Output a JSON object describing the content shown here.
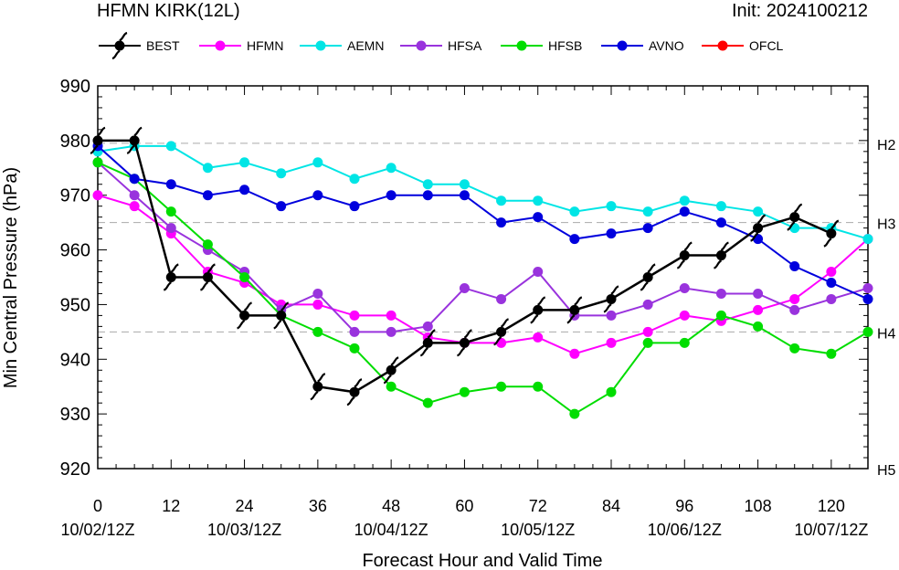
{
  "header": {
    "title": "HFMN KIRK(12L)",
    "init": "Init: 2024100212"
  },
  "chart_data": {
    "type": "line",
    "xlabel": "Forecast Hour and Valid Time",
    "ylabel": "Min Central Pressure (hPa)",
    "xlim": [
      0,
      126
    ],
    "ylim": [
      920,
      990
    ],
    "x_ticks": [
      0,
      12,
      24,
      36,
      48,
      60,
      72,
      84,
      96,
      108,
      120
    ],
    "x_tick_labels": [
      "0",
      "12",
      "24",
      "36",
      "48",
      "60",
      "72",
      "84",
      "96",
      "108",
      "120"
    ],
    "date_labels": [
      {
        "x": 0,
        "label": "10/02/12Z"
      },
      {
        "x": 24,
        "label": "10/03/12Z"
      },
      {
        "x": 48,
        "label": "10/04/12Z"
      },
      {
        "x": 72,
        "label": "10/05/12Z"
      },
      {
        "x": 96,
        "label": "10/06/12Z"
      },
      {
        "x": 120,
        "label": "10/07/12Z"
      }
    ],
    "y_ticks": [
      920,
      930,
      940,
      950,
      960,
      970,
      980,
      990
    ],
    "category_lines": [
      {
        "label": "H2",
        "value": 979.5
      },
      {
        "label": "H3",
        "value": 965
      },
      {
        "label": "H4",
        "value": 945
      },
      {
        "label": "H5",
        "value": 920
      }
    ],
    "legend_position": "top",
    "series": [
      {
        "name": "BEST",
        "color": "#000000",
        "marker": "hurricane",
        "x": [
          0,
          6,
          12,
          18,
          24,
          30,
          36,
          42,
          48,
          54,
          60,
          66,
          72,
          78,
          84,
          90,
          96,
          102,
          108,
          114,
          120
        ],
        "values": [
          980,
          980,
          955,
          955,
          948,
          948,
          935,
          934,
          938,
          943,
          943,
          945,
          949,
          949,
          951,
          955,
          959,
          959,
          964,
          966,
          963
        ]
      },
      {
        "name": "HFMN",
        "color": "#ff00ff",
        "marker": "dot",
        "x": [
          0,
          6,
          12,
          18,
          24,
          30,
          36,
          42,
          48,
          54,
          60,
          66,
          72,
          78,
          84,
          90,
          96,
          102,
          108,
          114,
          120,
          126
        ],
        "values": [
          970,
          968,
          963,
          956,
          954,
          950,
          950,
          948,
          948,
          944,
          943,
          943,
          944,
          941,
          943,
          945,
          948,
          947,
          949,
          951,
          956,
          962
        ]
      },
      {
        "name": "AEMN",
        "color": "#00e5e5",
        "marker": "dot",
        "x": [
          0,
          6,
          12,
          18,
          24,
          30,
          36,
          42,
          48,
          54,
          60,
          66,
          72,
          78,
          84,
          90,
          96,
          102,
          108,
          114,
          120,
          126
        ],
        "values": [
          978,
          979,
          979,
          975,
          976,
          974,
          976,
          973,
          975,
          972,
          972,
          969,
          969,
          967,
          968,
          967,
          969,
          968,
          967,
          964,
          964,
          962
        ]
      },
      {
        "name": "HFSA",
        "color": "#9933dd",
        "marker": "dot",
        "x": [
          0,
          6,
          12,
          18,
          24,
          30,
          36,
          42,
          48,
          54,
          60,
          66,
          72,
          78,
          84,
          90,
          96,
          102,
          108,
          114,
          120,
          126
        ],
        "values": [
          976,
          970,
          964,
          960,
          956,
          949,
          952,
          945,
          945,
          946,
          953,
          951,
          956,
          948,
          948,
          950,
          953,
          952,
          952,
          949,
          951,
          953
        ]
      },
      {
        "name": "HFSB",
        "color": "#00dd00",
        "marker": "dot",
        "x": [
          0,
          6,
          12,
          18,
          24,
          30,
          36,
          42,
          48,
          54,
          60,
          66,
          72,
          78,
          84,
          90,
          96,
          102,
          108,
          114,
          120,
          126
        ],
        "values": [
          976,
          973,
          967,
          961,
          955,
          948,
          945,
          942,
          935,
          932,
          934,
          935,
          935,
          930,
          934,
          943,
          943,
          948,
          946,
          942,
          941,
          945
        ]
      },
      {
        "name": "AVNO",
        "color": "#0000dd",
        "marker": "dot",
        "x": [
          0,
          6,
          12,
          18,
          24,
          30,
          36,
          42,
          48,
          54,
          60,
          66,
          72,
          78,
          84,
          90,
          96,
          102,
          108,
          114,
          120,
          126
        ],
        "values": [
          979,
          973,
          972,
          970,
          971,
          968,
          970,
          968,
          970,
          970,
          970,
          965,
          966,
          962,
          963,
          964,
          967,
          965,
          962,
          957,
          954,
          951
        ]
      },
      {
        "name": "OFCL",
        "color": "#ff0000",
        "marker": "dot",
        "x": [],
        "values": []
      }
    ]
  }
}
